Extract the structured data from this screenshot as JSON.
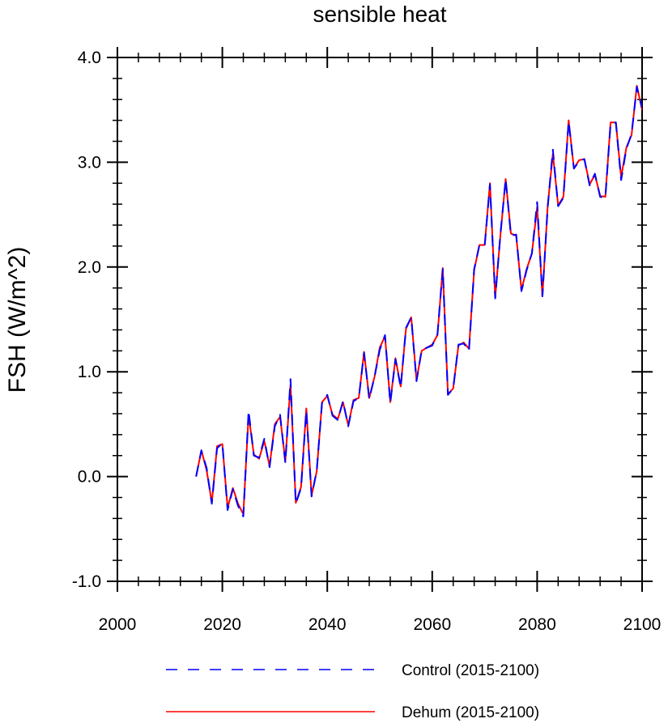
{
  "chart_data": {
    "type": "line",
    "title": "sensible heat",
    "xlabel": "",
    "ylabel": "FSH  (W/m^2)",
    "xlim": [
      2000,
      2100
    ],
    "ylim": [
      -1.0,
      4.0
    ],
    "x_ticks": [
      2000,
      2020,
      2040,
      2060,
      2080,
      2100
    ],
    "x_tick_labels": [
      "2000",
      "2020",
      "2040",
      "2060",
      "2080",
      "2100"
    ],
    "y_ticks": [
      -1.0,
      0.0,
      1.0,
      2.0,
      3.0,
      4.0
    ],
    "y_tick_labels": [
      "-1.0",
      "0.0",
      "1.0",
      "2.0",
      "3.0",
      "4.0"
    ],
    "grid": false,
    "legend_position": "bottom",
    "x": [
      2015,
      2016,
      2017,
      2018,
      2019,
      2020,
      2021,
      2022,
      2023,
      2024,
      2025,
      2026,
      2027,
      2028,
      2029,
      2030,
      2031,
      2032,
      2033,
      2034,
      2035,
      2036,
      2037,
      2038,
      2039,
      2040,
      2041,
      2042,
      2043,
      2044,
      2045,
      2046,
      2047,
      2048,
      2049,
      2050,
      2051,
      2052,
      2053,
      2054,
      2055,
      2056,
      2057,
      2058,
      2059,
      2060,
      2061,
      2062,
      2063,
      2064,
      2065,
      2066,
      2067,
      2068,
      2069,
      2070,
      2071,
      2072,
      2073,
      2074,
      2075,
      2076,
      2077,
      2078,
      2079,
      2080,
      2081,
      2082,
      2083,
      2084,
      2085,
      2086,
      2087,
      2088,
      2089,
      2090,
      2091,
      2092,
      2093,
      2094,
      2095,
      2096,
      2097,
      2098,
      2099,
      2100
    ],
    "series": [
      {
        "name": "Control (2015-2100)",
        "color": "#0000ff",
        "dash": "dashed",
        "values": [
          0.0,
          0.25,
          0.08,
          -0.26,
          0.27,
          0.32,
          -0.32,
          -0.12,
          -0.28,
          -0.38,
          0.63,
          0.2,
          0.18,
          0.36,
          0.09,
          0.48,
          0.59,
          0.13,
          0.93,
          -0.26,
          -0.11,
          0.63,
          -0.19,
          0.06,
          0.7,
          0.78,
          0.58,
          0.54,
          0.72,
          0.48,
          0.72,
          0.75,
          1.18,
          0.74,
          0.95,
          1.21,
          1.35,
          0.7,
          1.12,
          0.85,
          1.42,
          1.52,
          0.91,
          1.21,
          1.23,
          1.25,
          1.36,
          1.98,
          0.78,
          0.84,
          1.26,
          1.27,
          1.2,
          1.98,
          2.21,
          2.2,
          2.79,
          1.7,
          2.31,
          2.84,
          2.3,
          2.31,
          1.77,
          1.97,
          2.13,
          2.62,
          1.72,
          2.57,
          3.12,
          2.58,
          2.66,
          3.39,
          2.94,
          3.01,
          3.03,
          2.78,
          2.89,
          2.67,
          2.66,
          3.37,
          3.38,
          2.83,
          3.13,
          3.27,
          3.72,
          3.52
        ]
      },
      {
        "name": "Dehum (2015-2100)",
        "color": "#ff0000",
        "dash": "solid",
        "values": [
          0.0,
          0.25,
          0.06,
          -0.25,
          0.29,
          0.31,
          -0.3,
          -0.11,
          -0.26,
          -0.36,
          0.59,
          0.21,
          0.17,
          0.34,
          0.1,
          0.5,
          0.57,
          0.15,
          0.88,
          -0.25,
          -0.1,
          0.65,
          -0.18,
          0.05,
          0.71,
          0.77,
          0.59,
          0.55,
          0.71,
          0.49,
          0.73,
          0.75,
          1.19,
          0.75,
          0.95,
          1.23,
          1.34,
          0.71,
          1.13,
          0.86,
          1.41,
          1.52,
          0.92,
          1.2,
          1.23,
          1.26,
          1.35,
          1.99,
          0.79,
          0.84,
          1.25,
          1.28,
          1.22,
          1.97,
          2.21,
          2.21,
          2.8,
          1.71,
          2.3,
          2.84,
          2.32,
          2.3,
          1.78,
          1.98,
          2.13,
          2.57,
          1.72,
          2.58,
          3.08,
          2.59,
          2.67,
          3.4,
          2.94,
          3.02,
          3.03,
          2.79,
          2.88,
          2.68,
          2.67,
          3.38,
          3.38,
          2.86,
          3.14,
          3.26,
          3.73,
          3.5
        ]
      }
    ]
  }
}
